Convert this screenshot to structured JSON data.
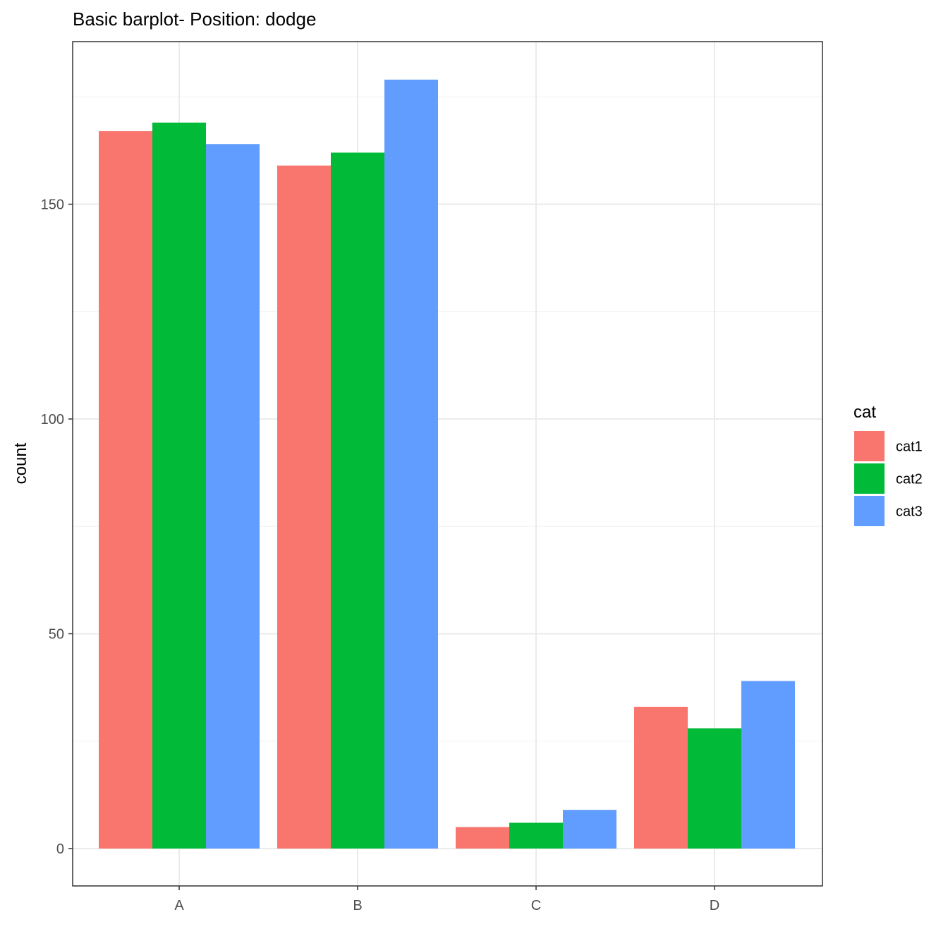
{
  "chart_data": {
    "type": "bar",
    "title": "Basic barplot- Position: dodge",
    "xlabel": "",
    "ylabel": "count",
    "categories": [
      "A",
      "B",
      "C",
      "D"
    ],
    "series": [
      {
        "name": "cat1",
        "color": "#F8766D",
        "values": [
          167,
          159,
          5,
          33
        ]
      },
      {
        "name": "cat2",
        "color": "#00BA38",
        "values": [
          169,
          162,
          6,
          28
        ]
      },
      {
        "name": "cat3",
        "color": "#619CFF",
        "values": [
          164,
          179,
          9,
          39
        ]
      }
    ],
    "ylim": [
      -9,
      188
    ],
    "yticks": [
      0,
      50,
      100,
      150
    ],
    "yticks_minor": [
      25,
      75,
      125,
      175
    ],
    "grid": true,
    "legend": {
      "title": "cat",
      "position": "right"
    }
  }
}
